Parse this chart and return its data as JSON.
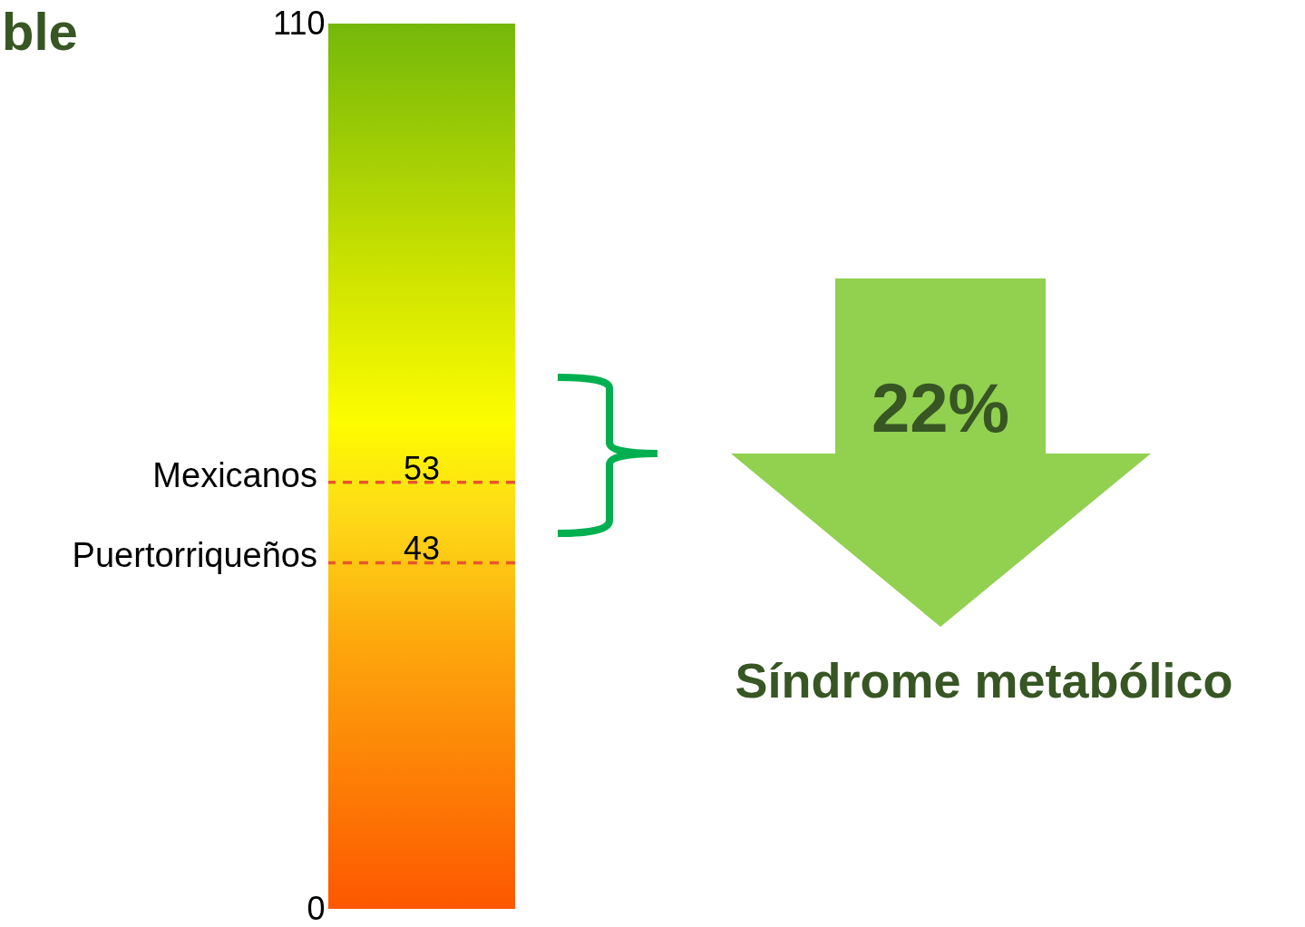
{
  "chart_data": {
    "type": "bar",
    "title": "ble",
    "categories": [
      null
    ],
    "values": [
      110
    ],
    "color": "#f2f200",
    "ylim": [
      0,
      110
    ],
    "yticks": [
      0,
      110
    ],
    "line_style": "dashed",
    "ref_lines": [
      {
        "axis": "y",
        "value": 53,
        "label": "Mexicanos",
        "color": "#e8562a"
      },
      {
        "axis": "y",
        "value": 43,
        "label": "Puertorriqueños",
        "color": "#e8562a"
      }
    ],
    "annotations": [
      {
        "text": "53",
        "y": 53
      },
      {
        "text": "43",
        "y": 43
      },
      "22%",
      "Síndrome metabólico"
    ]
  }
}
